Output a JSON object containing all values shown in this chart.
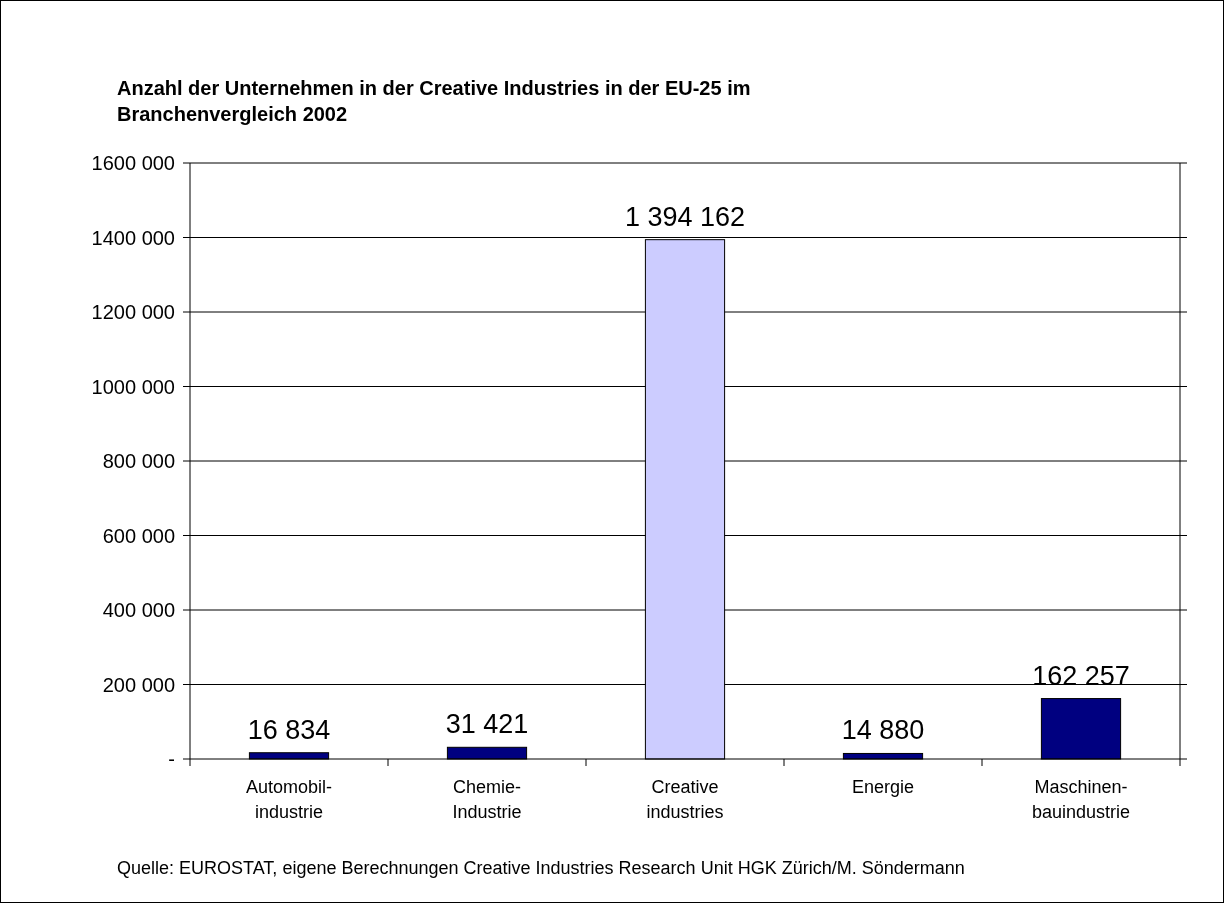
{
  "chart_data": {
    "type": "bar",
    "title": "Anzahl der Unternehmen in der Creative Industries in der EU-25 im\nBranchenvergleich 2002",
    "categories": [
      "Automobil-\nindustrie",
      "Chemie-\nIndustrie",
      "Creative\nindustries",
      "Energie",
      "Maschinen-\nbauindustrie"
    ],
    "values": [
      16834,
      31421,
      1394162,
      14880,
      162257
    ],
    "colors": [
      "#000080",
      "#000080",
      "#ccccff",
      "#000080",
      "#000080"
    ],
    "value_labels": [
      "16 834",
      "31 421",
      "1 394 162",
      "14 880",
      "162 257"
    ],
    "ylim": [
      0,
      1600000
    ],
    "yticks": [
      {
        "value": 0,
        "label": "-"
      },
      {
        "value": 200000,
        "label": "200 000"
      },
      {
        "value": 400000,
        "label": "400 000"
      },
      {
        "value": 600000,
        "label": "600 000"
      },
      {
        "value": 800000,
        "label": "800 000"
      },
      {
        "value": 1000000,
        "label": "1000 000"
      },
      {
        "value": 1200000,
        "label": "1200 000"
      },
      {
        "value": 1400000,
        "label": "1400 000"
      },
      {
        "value": 1600000,
        "label": "1600 000"
      }
    ],
    "grid": "y",
    "annotations": [
      "Quelle: EUROSTAT, eigene Berechnungen Creative Industries Research Unit HGK Zürich/M. Söndermann"
    ]
  }
}
